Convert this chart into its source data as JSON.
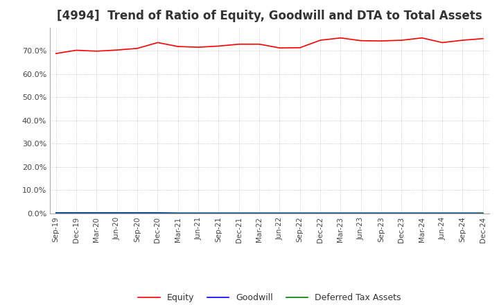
{
  "title": "[4994]  Trend of Ratio of Equity, Goodwill and DTA to Total Assets",
  "title_fontsize": 12,
  "x_labels": [
    "Sep-19",
    "Dec-19",
    "Mar-20",
    "Jun-20",
    "Sep-20",
    "Dec-20",
    "Mar-21",
    "Jun-21",
    "Sep-21",
    "Dec-21",
    "Mar-22",
    "Jun-22",
    "Sep-22",
    "Dec-22",
    "Mar-23",
    "Jun-23",
    "Sep-23",
    "Dec-23",
    "Mar-24",
    "Jun-24",
    "Sep-24",
    "Dec-24"
  ],
  "equity": [
    68.8,
    70.2,
    69.8,
    70.3,
    71.0,
    73.5,
    71.8,
    71.5,
    72.0,
    72.8,
    72.8,
    71.2,
    71.3,
    74.5,
    75.5,
    74.3,
    74.2,
    74.5,
    75.5,
    73.5,
    74.5,
    75.2
  ],
  "goodwill": [
    0.3,
    0.3,
    0.3,
    0.3,
    0.3,
    0.3,
    0.2,
    0.2,
    0.2,
    0.2,
    0.2,
    0.2,
    0.2,
    0.2,
    0.2,
    0.2,
    0.2,
    0.2,
    0.2,
    0.2,
    0.2,
    0.2
  ],
  "dta": [
    0.0,
    0.0,
    0.0,
    0.0,
    0.0,
    0.0,
    0.0,
    0.0,
    0.0,
    0.0,
    0.0,
    0.0,
    0.0,
    0.0,
    0.0,
    0.0,
    0.0,
    0.0,
    0.0,
    0.0,
    0.0,
    0.0
  ],
  "equity_color": "#ff0000",
  "goodwill_color": "#0000ff",
  "dta_color": "#008000",
  "ylim": [
    0,
    80
  ],
  "yticks": [
    0,
    10,
    20,
    30,
    40,
    50,
    60,
    70
  ],
  "background_color": "#ffffff",
  "grid_color": "#aaaaaa",
  "legend_labels": [
    "Equity",
    "Goodwill",
    "Deferred Tax Assets"
  ]
}
